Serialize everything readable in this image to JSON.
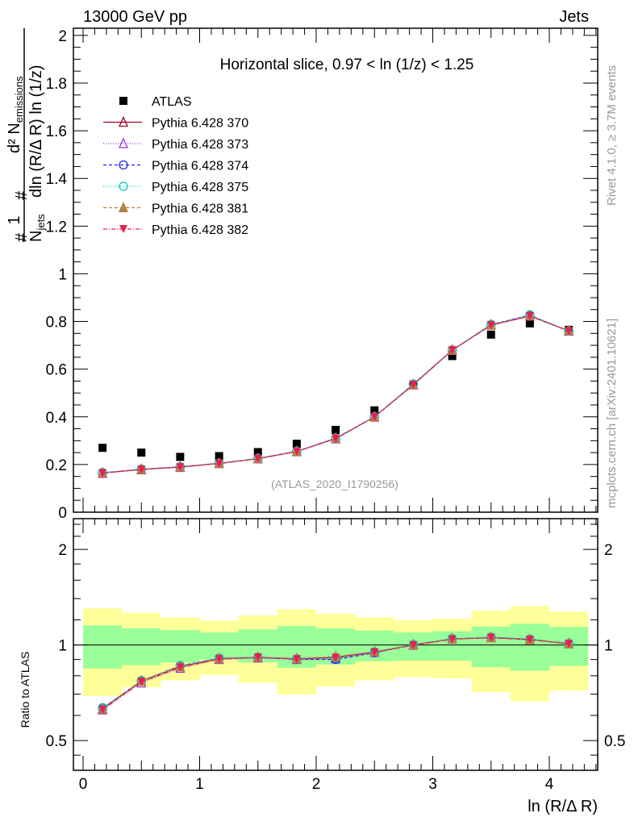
{
  "header": {
    "left": "13000 GeV pp",
    "right": "Jets"
  },
  "side_text": {
    "top": "Rivet 4.1.0, ≥ 3.7M events",
    "bottom": "mcplots.cern.ch [arXiv:2401.10621]"
  },
  "colors": {
    "atlas": "#000000",
    "band_inner": "#99ff99",
    "band_outer": "#ffff99"
  },
  "chart_data": [
    {
      "type": "line",
      "title": "Horizontal slice, 0.97 < ln (1/z) < 1.25",
      "ylabel": "1/N_jets d²N_emissions / dln (R/Δ R) ln (1/z)",
      "ylabel_parts": {
        "one": "1",
        "njets": "N",
        "njets_sub": "jets",
        "num": "d² N",
        "num_sub": "emissions",
        "den": "dln (R/Δ R) ln (1/z)",
        "hash": "#"
      },
      "watermark": "(ATLAS_2020_I1790256)",
      "xlim": [
        -0.083,
        4.415
      ],
      "ylim": [
        0,
        2.03
      ],
      "yticks": [
        "0",
        "0.2",
        "0.4",
        "0.6",
        "0.8",
        "1",
        "1.2",
        "1.4",
        "1.6",
        "1.8",
        "2"
      ],
      "x": [
        0.167,
        0.5,
        0.833,
        1.167,
        1.5,
        1.833,
        2.167,
        2.5,
        2.833,
        3.167,
        3.5,
        3.833,
        4.167
      ],
      "bin_width": 0.3333,
      "legend_position": "top-left",
      "series": [
        {
          "name": "ATLAS",
          "color": "#000000",
          "marker": "square",
          "dash": "",
          "values": [
            0.27,
            0.25,
            0.232,
            0.235,
            0.252,
            0.287,
            0.345,
            0.427,
            0.535,
            0.655,
            0.745,
            0.792,
            0.765
          ]
        },
        {
          "name": "Pythia 6.428 370",
          "color": "#a00020",
          "marker": "triangle-open",
          "dash": "",
          "values": [
            0.165,
            0.18,
            0.19,
            0.205,
            0.225,
            0.255,
            0.31,
            0.4,
            0.535,
            0.68,
            0.785,
            0.823,
            0.76
          ]
        },
        {
          "name": "Pythia 6.428 373",
          "color": "#9933dd",
          "marker": "triangle-open",
          "dash": "1,2",
          "values": [
            0.163,
            0.178,
            0.188,
            0.204,
            0.224,
            0.254,
            0.308,
            0.399,
            0.534,
            0.679,
            0.786,
            0.825,
            0.761
          ]
        },
        {
          "name": "Pythia 6.428 374",
          "color": "#2222ff",
          "marker": "circle-open",
          "dash": "4,3",
          "values": [
            0.165,
            0.18,
            0.19,
            0.205,
            0.225,
            0.255,
            0.308,
            0.4,
            0.537,
            0.68,
            0.787,
            0.826,
            0.76
          ]
        },
        {
          "name": "Pythia 6.428 375",
          "color": "#00ccbb",
          "marker": "circle-open",
          "dash": "1,2",
          "values": [
            0.166,
            0.181,
            0.191,
            0.206,
            0.226,
            0.256,
            0.311,
            0.401,
            0.538,
            0.681,
            0.788,
            0.828,
            0.761
          ]
        },
        {
          "name": "Pythia 6.428 381",
          "color": "#b87f4a",
          "marker": "triangle-filled",
          "dash": "4,3",
          "values": [
            0.165,
            0.18,
            0.19,
            0.205,
            0.225,
            0.255,
            0.31,
            0.4,
            0.535,
            0.68,
            0.785,
            0.823,
            0.762
          ]
        },
        {
          "name": "Pythia 6.428 382",
          "color": "#e8204f",
          "marker": "triangle-down-filled",
          "dash": "5,2,1,2",
          "values": [
            0.164,
            0.179,
            0.189,
            0.204,
            0.224,
            0.254,
            0.309,
            0.399,
            0.534,
            0.679,
            0.784,
            0.822,
            0.76
          ]
        }
      ]
    },
    {
      "type": "line",
      "ylabel": "Ratio to ATLAS",
      "xlabel": "ln (R/Δ R)",
      "yscale": "log",
      "ylim": [
        0.403,
        2.5
      ],
      "yticks": [
        "0.5",
        "1",
        "2"
      ],
      "ytick_values": [
        0.5,
        1,
        2
      ],
      "xticks": [
        "0",
        "1",
        "2",
        "3",
        "4"
      ],
      "band_outer": {
        "upper": [
          1.304,
          1.262,
          1.222,
          1.193,
          1.239,
          1.296,
          1.255,
          1.222,
          1.197,
          1.211,
          1.282,
          1.326,
          1.275
        ],
        "lower": [
          0.691,
          0.736,
          0.774,
          0.804,
          0.76,
          0.698,
          0.739,
          0.774,
          0.792,
          0.785,
          0.711,
          0.665,
          0.718
        ]
      },
      "band_inner": {
        "upper": [
          1.153,
          1.129,
          1.114,
          1.095,
          1.12,
          1.148,
          1.127,
          1.11,
          1.095,
          1.106,
          1.144,
          1.166,
          1.14
        ],
        "lower": [
          0.843,
          0.864,
          0.881,
          0.901,
          0.881,
          0.848,
          0.868,
          0.888,
          0.893,
          0.893,
          0.851,
          0.83,
          0.859
        ]
      },
      "ratios": [
        [
          0.63,
          0.77,
          0.855,
          0.905,
          0.915,
          0.905,
          0.915,
          0.95,
          1.0,
          1.045,
          1.055,
          1.04,
          1.01
        ],
        [
          0.625,
          0.76,
          0.845,
          0.9,
          0.91,
          0.9,
          0.905,
          0.948,
          0.998,
          1.046,
          1.056,
          1.041,
          1.012
        ],
        [
          0.632,
          0.77,
          0.86,
          0.908,
          0.913,
          0.902,
          0.9,
          0.945,
          1.002,
          1.044,
          1.057,
          1.043,
          1.01
        ],
        [
          0.635,
          0.773,
          0.862,
          0.91,
          0.914,
          0.905,
          0.91,
          0.952,
          1.003,
          1.047,
          1.058,
          1.044,
          1.011
        ],
        [
          0.63,
          0.77,
          0.855,
          0.905,
          0.915,
          0.905,
          0.92,
          0.952,
          1.0,
          1.045,
          1.055,
          1.04,
          1.012
        ],
        [
          0.625,
          0.765,
          0.85,
          0.902,
          0.915,
          0.902,
          0.912,
          0.948,
          0.998,
          1.043,
          1.054,
          1.039,
          1.008
        ]
      ]
    }
  ]
}
